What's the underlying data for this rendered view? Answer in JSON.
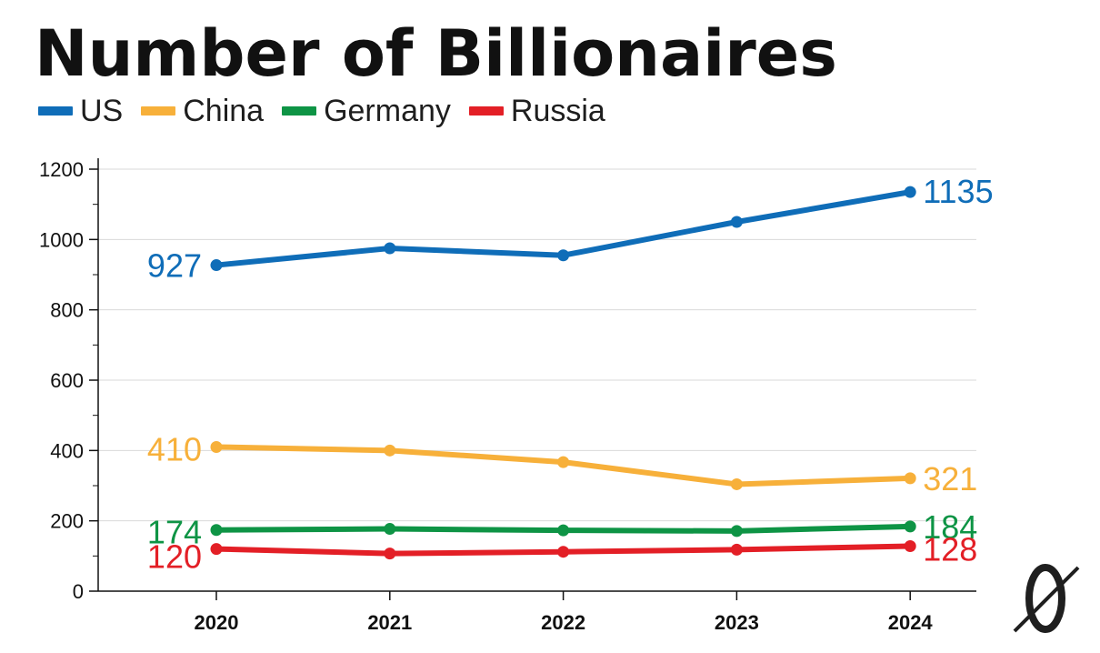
{
  "colors": {
    "us": "#0f6db8",
    "china": "#f7b03a",
    "germany": "#0e9445",
    "russia": "#e31f26",
    "axis": "#111111",
    "grid": "#d9d9d9"
  },
  "chart_data": {
    "type": "line",
    "title": "Number of Billionaires",
    "categories": [
      "2020",
      "2021",
      "2022",
      "2023",
      "2024"
    ],
    "ylim": [
      0,
      1200
    ],
    "y_ticks": [
      0,
      200,
      400,
      600,
      800,
      1000,
      1200
    ],
    "grid": true,
    "legend_position": "top-left",
    "series": [
      {
        "key": "us",
        "name": "US",
        "values": [
          927,
          975,
          955,
          1050,
          1135
        ],
        "start_label": "927",
        "end_label": "1135"
      },
      {
        "key": "china",
        "name": "China",
        "values": [
          410,
          400,
          367,
          304,
          321
        ],
        "start_label": "410",
        "end_label": "321"
      },
      {
        "key": "germany",
        "name": "Germany",
        "values": [
          174,
          177,
          173,
          171,
          184
        ],
        "start_label": "174",
        "end_label": "184"
      },
      {
        "key": "russia",
        "name": "Russia",
        "values": [
          120,
          107,
          112,
          118,
          128
        ],
        "start_label": "120",
        "end_label": "128"
      }
    ]
  },
  "logo_icon": "zero-slash-logo-icon"
}
